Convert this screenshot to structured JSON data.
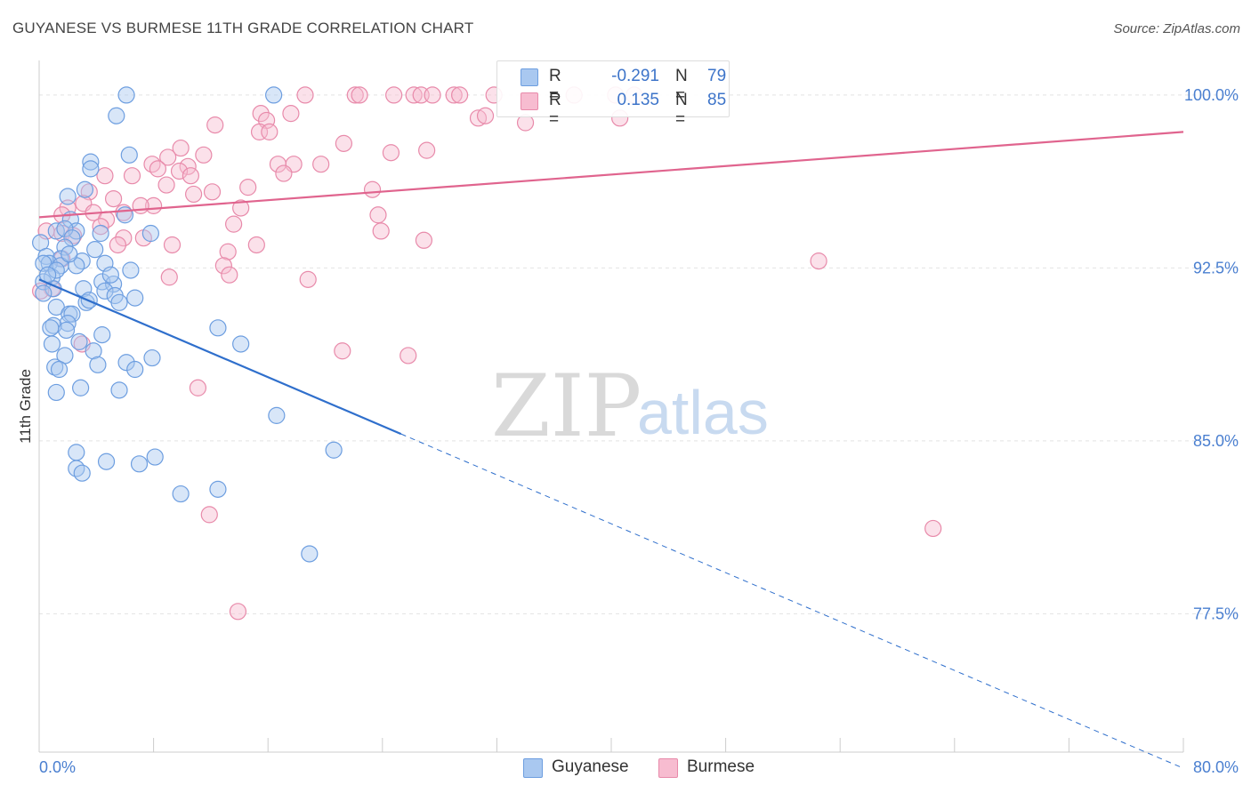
{
  "header": {
    "title": "GUYANESE VS BURMESE 11TH GRADE CORRELATION CHART",
    "source": "Source: ZipAtlas.com"
  },
  "watermark": {
    "zip": "ZIP",
    "atlas": "atlas"
  },
  "legend": {
    "rows": [
      {
        "r_label": "R =",
        "r_value": "-0.291",
        "n_label": "N =",
        "n_value": "79",
        "color": "#a9c8f0",
        "stroke": "#6d9ee0"
      },
      {
        "r_label": "R =",
        "r_value": "0.135",
        "n_label": "N =",
        "n_value": "85",
        "color": "#f7bcd0",
        "stroke": "#e88aaa"
      }
    ]
  },
  "bottom_legend": {
    "items": [
      {
        "label": "Guyanese",
        "color": "#a9c8f0",
        "stroke": "#6d9ee0"
      },
      {
        "label": "Burmese",
        "color": "#f7bcd0",
        "stroke": "#e88aaa"
      }
    ]
  },
  "chart_data": {
    "type": "scatter",
    "title": "GUYANESE VS BURMESE 11TH GRADE CORRELATION CHART",
    "xlabel": "",
    "ylabel": "11th Grade",
    "xlim": [
      0,
      80
    ],
    "ylim": [
      71.5,
      101.5
    ],
    "x_tick_labels": [
      "0.0%",
      "80.0%"
    ],
    "y_ticks": [
      100.0,
      92.5,
      85.0,
      77.5
    ],
    "y_tick_labels": [
      "100.0%",
      "92.5%",
      "85.0%",
      "77.5%"
    ],
    "colors": {
      "guyanese": "#5a95e0",
      "burmese": "#ec8fb0",
      "guyanese_line": "#2f6fcc",
      "burmese_line": "#e0648e"
    },
    "series": [
      {
        "name": "Guyanese",
        "trend": {
          "x0": 0,
          "y0": 92.0,
          "x1": 25.3,
          "y1": 85.3,
          "x_dash_end": 80,
          "y_dash_end": 70.8
        },
        "points": [
          [
            6.1,
            100.0
          ],
          [
            16.4,
            100.0
          ],
          [
            5.4,
            99.1
          ],
          [
            6.3,
            97.4
          ],
          [
            3.6,
            97.1
          ],
          [
            3.6,
            96.8
          ],
          [
            3.2,
            95.9
          ],
          [
            2.0,
            95.6
          ],
          [
            6.0,
            94.8
          ],
          [
            2.2,
            94.6
          ],
          [
            1.2,
            94.1
          ],
          [
            2.6,
            94.1
          ],
          [
            4.3,
            94.0
          ],
          [
            7.8,
            94.0
          ],
          [
            1.8,
            94.2
          ],
          [
            0.1,
            93.6
          ],
          [
            2.3,
            93.8
          ],
          [
            1.8,
            93.4
          ],
          [
            3.9,
            93.3
          ],
          [
            0.5,
            93.0
          ],
          [
            1.5,
            92.9
          ],
          [
            0.7,
            92.7
          ],
          [
            0.3,
            92.7
          ],
          [
            1.5,
            92.6
          ],
          [
            3.0,
            92.8
          ],
          [
            2.6,
            92.6
          ],
          [
            4.6,
            92.7
          ],
          [
            6.4,
            92.4
          ],
          [
            0.9,
            92.1
          ],
          [
            0.3,
            91.9
          ],
          [
            4.4,
            91.9
          ],
          [
            5.2,
            91.8
          ],
          [
            3.1,
            91.6
          ],
          [
            4.6,
            91.5
          ],
          [
            1.0,
            91.6
          ],
          [
            5.3,
            91.3
          ],
          [
            6.7,
            91.2
          ],
          [
            3.3,
            91.0
          ],
          [
            3.5,
            91.1
          ],
          [
            5.6,
            91.0
          ],
          [
            1.2,
            90.8
          ],
          [
            2.1,
            90.5
          ],
          [
            2.3,
            90.5
          ],
          [
            2.0,
            90.1
          ],
          [
            1.0,
            90.0
          ],
          [
            0.8,
            89.9
          ],
          [
            1.9,
            89.8
          ],
          [
            4.4,
            89.6
          ],
          [
            12.5,
            89.9
          ],
          [
            0.9,
            89.2
          ],
          [
            14.1,
            89.2
          ],
          [
            2.8,
            89.3
          ],
          [
            3.8,
            88.9
          ],
          [
            1.8,
            88.7
          ],
          [
            7.9,
            88.6
          ],
          [
            4.1,
            88.3
          ],
          [
            6.1,
            88.4
          ],
          [
            1.1,
            88.2
          ],
          [
            1.4,
            88.1
          ],
          [
            6.7,
            88.1
          ],
          [
            2.9,
            87.3
          ],
          [
            5.6,
            87.2
          ],
          [
            1.2,
            87.1
          ],
          [
            16.6,
            86.1
          ],
          [
            2.6,
            84.5
          ],
          [
            8.1,
            84.3
          ],
          [
            4.7,
            84.1
          ],
          [
            7.0,
            84.0
          ],
          [
            20.6,
            84.6
          ],
          [
            2.6,
            83.8
          ],
          [
            3.0,
            83.6
          ],
          [
            9.9,
            82.7
          ],
          [
            12.5,
            82.9
          ],
          [
            18.9,
            80.1
          ],
          [
            0.3,
            91.4
          ],
          [
            1.2,
            92.4
          ],
          [
            2.1,
            93.1
          ],
          [
            0.6,
            92.2
          ],
          [
            5.0,
            92.2
          ]
        ]
      },
      {
        "name": "Burmese",
        "trend": {
          "x0": 0,
          "y0": 94.7,
          "x1": 80,
          "y1": 98.4
        },
        "points": [
          [
            18.6,
            100.0
          ],
          [
            22.1,
            100.0
          ],
          [
            22.4,
            100.0
          ],
          [
            24.8,
            100.0
          ],
          [
            26.2,
            100.0
          ],
          [
            26.7,
            100.0
          ],
          [
            27.5,
            100.0
          ],
          [
            29.0,
            100.0
          ],
          [
            29.4,
            100.0
          ],
          [
            31.8,
            100.0
          ],
          [
            37.4,
            100.0
          ],
          [
            40.3,
            100.0
          ],
          [
            41.6,
            100.0
          ],
          [
            30.7,
            99.0
          ],
          [
            31.2,
            99.1
          ],
          [
            15.5,
            99.2
          ],
          [
            17.6,
            99.2
          ],
          [
            15.9,
            98.9
          ],
          [
            12.3,
            98.7
          ],
          [
            15.4,
            98.4
          ],
          [
            16.1,
            98.4
          ],
          [
            21.3,
            97.9
          ],
          [
            9.9,
            97.7
          ],
          [
            27.1,
            97.6
          ],
          [
            24.6,
            97.5
          ],
          [
            11.5,
            97.4
          ],
          [
            9.0,
            97.3
          ],
          [
            7.9,
            97.0
          ],
          [
            16.7,
            97.0
          ],
          [
            17.8,
            97.0
          ],
          [
            19.7,
            97.0
          ],
          [
            10.4,
            96.9
          ],
          [
            8.3,
            96.8
          ],
          [
            9.8,
            96.7
          ],
          [
            17.1,
            96.6
          ],
          [
            4.6,
            96.5
          ],
          [
            6.5,
            96.5
          ],
          [
            10.6,
            96.5
          ],
          [
            8.9,
            96.1
          ],
          [
            14.6,
            96.0
          ],
          [
            23.3,
            95.9
          ],
          [
            12.1,
            95.8
          ],
          [
            10.8,
            95.7
          ],
          [
            3.5,
            95.8
          ],
          [
            5.2,
            95.5
          ],
          [
            8.0,
            95.2
          ],
          [
            3.1,
            95.3
          ],
          [
            2.0,
            95.1
          ],
          [
            7.1,
            95.2
          ],
          [
            14.1,
            95.1
          ],
          [
            3.8,
            94.9
          ],
          [
            4.7,
            94.6
          ],
          [
            23.7,
            94.8
          ],
          [
            1.6,
            94.8
          ],
          [
            5.9,
            94.9
          ],
          [
            4.3,
            94.3
          ],
          [
            13.6,
            94.4
          ],
          [
            0.5,
            94.1
          ],
          [
            1.6,
            94.0
          ],
          [
            2.4,
            93.9
          ],
          [
            5.9,
            93.8
          ],
          [
            23.9,
            94.1
          ],
          [
            7.3,
            93.8
          ],
          [
            9.3,
            93.5
          ],
          [
            5.5,
            93.5
          ],
          [
            15.2,
            93.5
          ],
          [
            26.9,
            93.7
          ],
          [
            13.2,
            93.2
          ],
          [
            1.6,
            92.9
          ],
          [
            12.9,
            92.6
          ],
          [
            13.3,
            92.2
          ],
          [
            9.1,
            92.1
          ],
          [
            54.5,
            92.8
          ],
          [
            18.8,
            92.0
          ],
          [
            0.9,
            91.6
          ],
          [
            0.1,
            91.5
          ],
          [
            3.0,
            89.2
          ],
          [
            21.2,
            88.9
          ],
          [
            25.8,
            88.7
          ],
          [
            11.1,
            87.3
          ],
          [
            11.9,
            81.8
          ],
          [
            62.5,
            81.2
          ],
          [
            13.9,
            77.6
          ],
          [
            40.6,
            99.0
          ],
          [
            34.0,
            98.8
          ]
        ]
      }
    ]
  }
}
